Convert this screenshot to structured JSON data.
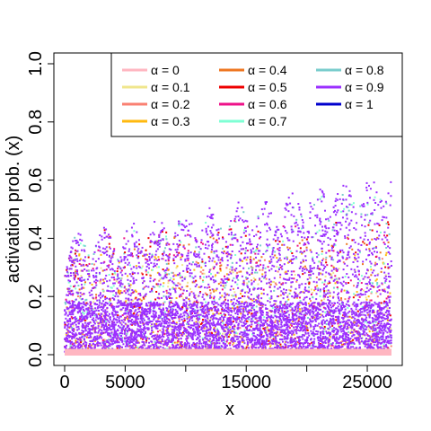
{
  "chart_data": {
    "type": "scatter",
    "title": "",
    "xlabel": "x",
    "ylabel": "activation prob. (x)",
    "xlim": [
      0,
      27000
    ],
    "ylim": [
      0,
      1
    ],
    "x_ticks": [
      0,
      5000,
      10000,
      15000,
      20000,
      25000
    ],
    "x_tick_labels": [
      "0",
      "5000",
      "",
      "15000",
      "",
      "25000"
    ],
    "y_ticks": [
      0.0,
      0.2,
      0.4,
      0.6,
      0.8,
      1.0
    ],
    "y_tick_labels": [
      "0.0",
      "0.2",
      "0.4",
      "0.6",
      "0.8",
      "1.0"
    ],
    "grid": false,
    "legend_position": "top-right",
    "legend_columns": 3,
    "series": [
      {
        "name": "α = 0",
        "color": "#FFB6C1",
        "band": [
          0.0,
          0.02
        ]
      },
      {
        "name": "α = 0.1",
        "color": "#F0E68C",
        "band": [
          0.0,
          0.3
        ]
      },
      {
        "name": "α = 0.2",
        "color": "#FA8072",
        "band": [
          0.0,
          0.32
        ]
      },
      {
        "name": "α = 0.3",
        "color": "#FFB90F",
        "band": [
          0.0,
          0.34
        ]
      },
      {
        "name": "α = 0.4",
        "color": "#EE7621",
        "band": [
          0.0,
          0.4
        ]
      },
      {
        "name": "α = 0.5",
        "color": "#EE0000",
        "band": [
          0.0,
          0.45
        ]
      },
      {
        "name": "α = 0.6",
        "color": "#EE1289",
        "band": [
          0.0,
          0.45
        ]
      },
      {
        "name": "α = 0.7",
        "color": "#7FFFD4",
        "band": [
          0.0,
          0.55
        ]
      },
      {
        "name": "α = 0.8",
        "color": "#79CDCD",
        "band": [
          0.0,
          0.55
        ]
      },
      {
        "name": "α = 0.9",
        "color": "#9B30FF",
        "band": [
          0.0,
          0.68
        ]
      },
      {
        "name": "α = 1",
        "color": "#0000CD",
        "band": [
          0.0,
          0.0
        ]
      }
    ]
  }
}
